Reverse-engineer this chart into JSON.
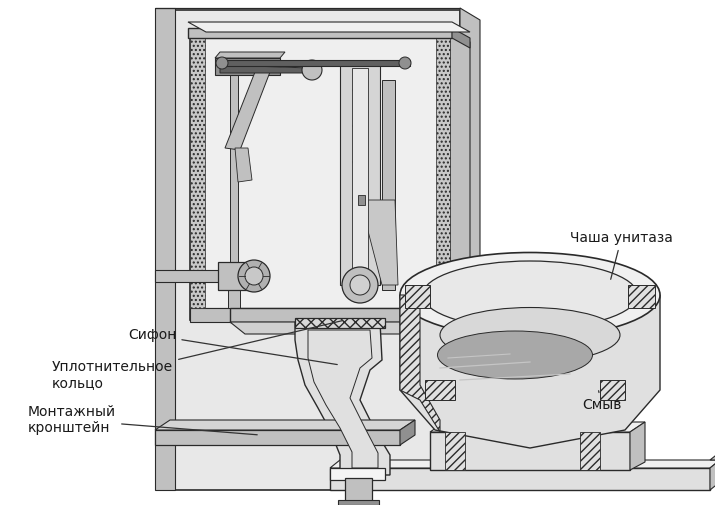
{
  "labels": {
    "chasha": "Чаша унитаза",
    "smyv": "Смыв",
    "sifon": "Сифон",
    "uplot": "Уплотнительное\nкольцо",
    "montazh": "Монтажный\nкронштейн"
  },
  "bg_color": "#ffffff",
  "lc": "#2a2a2a",
  "c_vlight": "#f0f0f0",
  "c_light": "#e0e0e0",
  "c_mid": "#c0c0c0",
  "c_dark": "#909090",
  "c_vdark": "#606060",
  "c_water": "#a8a8a8",
  "c_hatch": "#b0b0b0"
}
